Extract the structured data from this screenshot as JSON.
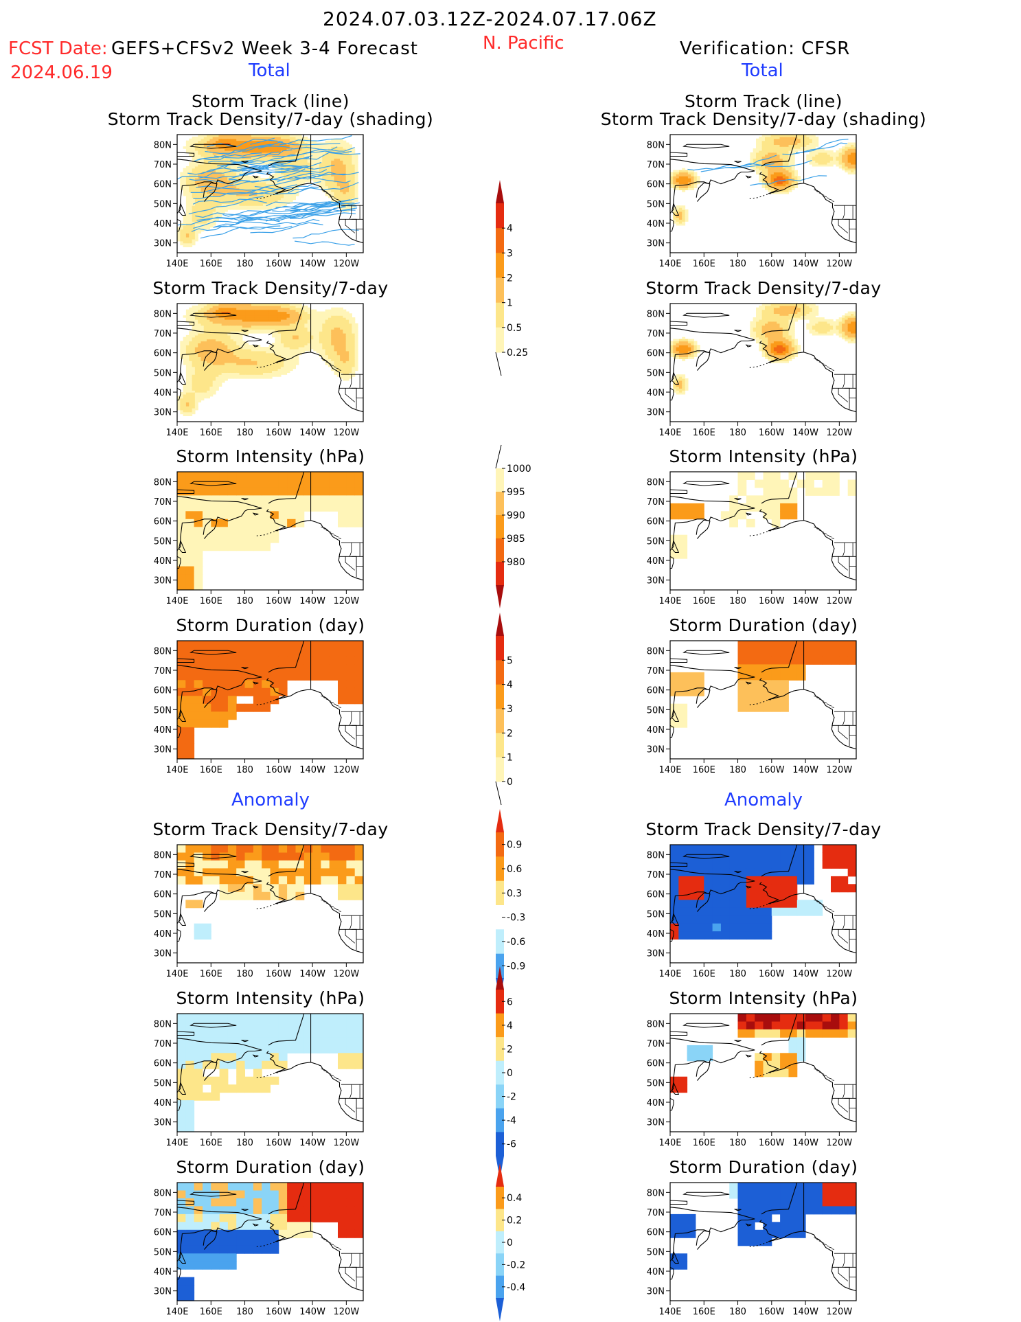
{
  "header": {
    "period": "2024.07.03.12Z-2024.07.17.06Z",
    "region": "N. Pacific",
    "fcst_label": "FCST Date:",
    "fcst_date": "2024.06.19",
    "model": "GEFS+CFSv2 Week 3-4 Forecast",
    "verification": "Verification: CFSR"
  },
  "section_labels": {
    "total": "Total",
    "anomaly": "Anomaly"
  },
  "axes": {
    "lat_ticks": [
      "80N",
      "70N",
      "60N",
      "50N",
      "40N",
      "30N"
    ],
    "lon_ticks": [
      "140E",
      "160E",
      "180",
      "160W",
      "140W",
      "120W"
    ]
  },
  "panels": {
    "row1_title": [
      "Storm Track (line)",
      "Storm Track Density/7-day (shading)"
    ],
    "density": "Storm Track Density/7-day",
    "intensity": "Storm Intensity (hPa)",
    "duration": "Storm Duration (day)"
  },
  "colorbars": {
    "density_total": {
      "labels": [
        "4",
        "3",
        "2",
        "1",
        "0.5",
        "0.25"
      ]
    },
    "intensity_total": {
      "labels": [
        "1000",
        "995",
        "990",
        "985",
        "980"
      ]
    },
    "duration_total": {
      "labels": [
        "5",
        "4",
        "3",
        "2",
        "1",
        "0"
      ]
    },
    "density_anom": {
      "labels": [
        "0.9",
        "0.6",
        "0.3",
        "-0.3",
        "-0.6",
        "-0.9"
      ]
    },
    "intensity_anom": {
      "labels": [
        "6",
        "4",
        "2",
        "0",
        "-2",
        "-4",
        "-6"
      ]
    },
    "duration_anom": {
      "labels": [
        "0.4",
        "0.2",
        "0",
        "-0.2",
        "-0.4"
      ]
    }
  },
  "colors": {
    "warm": [
      "#fff5b8",
      "#fde68a",
      "#fdc05a",
      "#fb9b1a",
      "#f36a12",
      "#e52c10",
      "#a80d0d"
    ],
    "cool": [
      "#bfeefc",
      "#8ad4f7",
      "#4aa3ee",
      "#1c5fd6"
    ],
    "track": "#3aa0e8"
  }
}
